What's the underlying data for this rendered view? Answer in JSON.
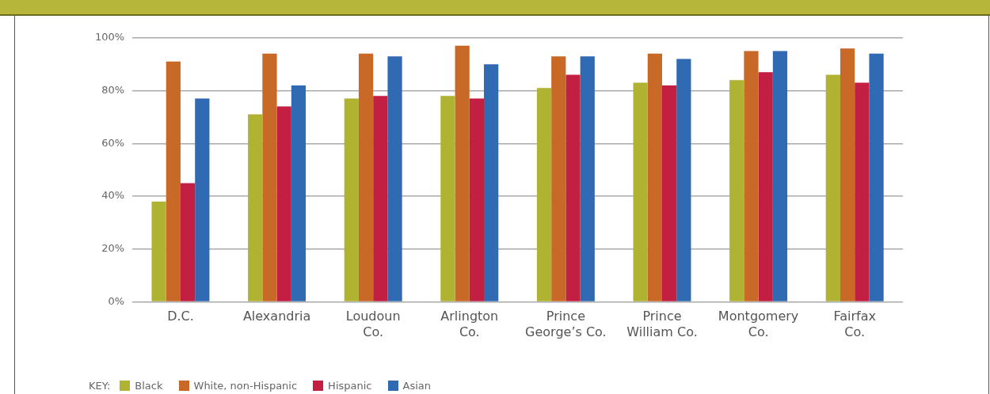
{
  "chart_data": {
    "type": "bar",
    "categories": [
      "D.C.",
      "Alexandria",
      "Loudoun Co.",
      "Arlington Co.",
      "Prince George’s Co.",
      "Prince William Co.",
      "Montgomery Co.",
      "Fairfax Co."
    ],
    "series": [
      {
        "name": "Black",
        "color": "#b0b232",
        "values": [
          38,
          71,
          77,
          78,
          81,
          83,
          84,
          86
        ]
      },
      {
        "name": "White, non-Hispanic",
        "color": "#c96928",
        "values": [
          91,
          94,
          94,
          97,
          93,
          94,
          95,
          96
        ]
      },
      {
        "name": "Hispanic",
        "color": "#c21f42",
        "values": [
          45,
          74,
          78,
          77,
          86,
          82,
          87,
          83
        ]
      },
      {
        "name": "Asian",
        "color": "#306ab3",
        "values": [
          77,
          82,
          93,
          90,
          93,
          92,
          95,
          94
        ]
      }
    ],
    "ylim": [
      0,
      100
    ],
    "yticks": [
      {
        "value": 0,
        "label": "0%"
      },
      {
        "value": 20,
        "label": "20%"
      },
      {
        "value": 40,
        "label": "40%"
      },
      {
        "value": 60,
        "label": "60%"
      },
      {
        "value": 80,
        "label": "80%"
      },
      {
        "value": 100,
        "label": "100%"
      }
    ],
    "grid": "y",
    "legend": "bottom left",
    "legend_title": "KEY:"
  }
}
